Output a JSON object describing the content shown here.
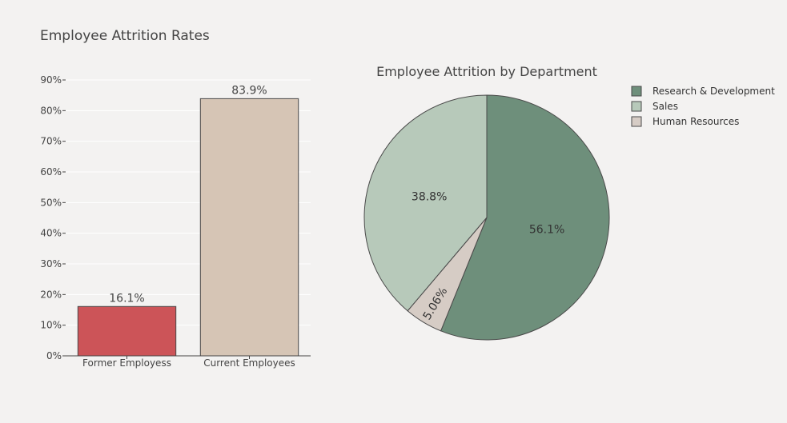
{
  "title": "Employee Attrition Rates",
  "colors": {
    "background": "#f3f2f1",
    "former": "#cc5458",
    "current": "#d6c5b5",
    "research": "#6e8f7b",
    "sales": "#b7c9ba",
    "hr": "#d6ccc5",
    "outline": "#4a4a4a",
    "grid": "#ffffff"
  },
  "chart_data": [
    {
      "type": "bar",
      "title": "Employee Attrition Rates",
      "categories": [
        "Former Employess",
        "Current Employees"
      ],
      "values": [
        16.1,
        83.9
      ],
      "data_labels": [
        "16.1%",
        "83.9%"
      ],
      "xlabel": "",
      "ylabel": "",
      "ylim": [
        0,
        90
      ],
      "yticks": [
        0,
        10,
        20,
        30,
        40,
        50,
        60,
        70,
        80,
        90
      ],
      "ytick_labels": [
        "0%",
        "10%",
        "20%",
        "30%",
        "40%",
        "50%",
        "60%",
        "70%",
        "80%",
        "90%"
      ],
      "grid": true
    },
    {
      "type": "pie",
      "title": "Employee Attrition by Department",
      "labels": [
        "Research & Development",
        "Sales",
        "Human Resources"
      ],
      "values": [
        56.1,
        38.8,
        5.06
      ],
      "data_labels": [
        "56.1%",
        "38.8%",
        "5.06%"
      ],
      "legend": "top-right"
    }
  ]
}
